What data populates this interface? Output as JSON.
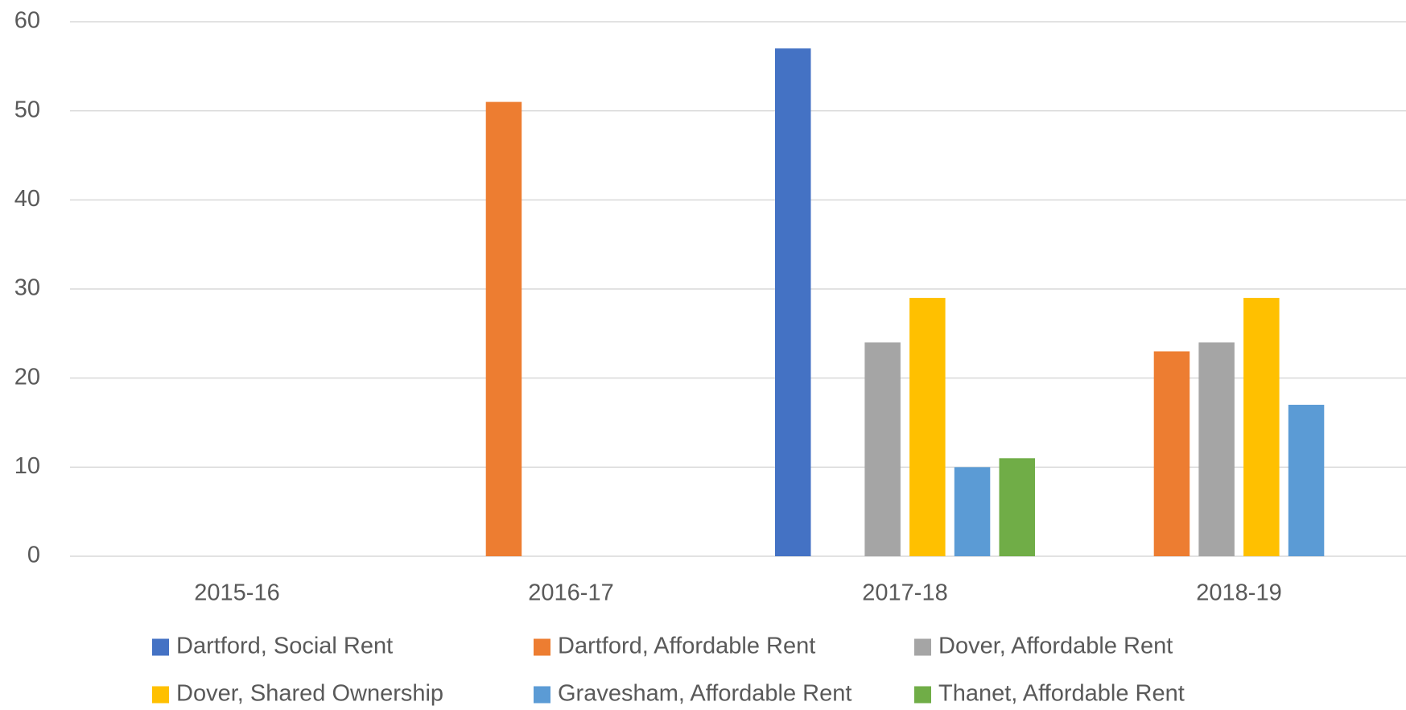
{
  "chart_data": {
    "type": "bar",
    "categories": [
      "2015-16",
      "2016-17",
      "2017-18",
      "2018-19"
    ],
    "series": [
      {
        "name": "Dartford, Social Rent",
        "color": "#4472c4",
        "values": [
          null,
          null,
          57,
          null
        ]
      },
      {
        "name": "Dartford, Affordable Rent",
        "color": "#ed7d31",
        "values": [
          null,
          51,
          null,
          23
        ]
      },
      {
        "name": "Dover, Affordable Rent",
        "color": "#a5a5a5",
        "values": [
          null,
          null,
          24,
          24
        ]
      },
      {
        "name": "Dover, Shared Ownership",
        "color": "#ffc000",
        "values": [
          null,
          null,
          29,
          29
        ]
      },
      {
        "name": "Gravesham, Affordable Rent",
        "color": "#5b9bd5",
        "values": [
          null,
          null,
          10,
          17
        ]
      },
      {
        "name": "Thanet, Affordable Rent",
        "color": "#70ad47",
        "values": [
          null,
          null,
          11,
          null
        ]
      }
    ],
    "ylim": [
      0,
      60
    ],
    "yticks": [
      0,
      10,
      20,
      30,
      40,
      50,
      60
    ],
    "grid": true,
    "legend": "bottom"
  }
}
